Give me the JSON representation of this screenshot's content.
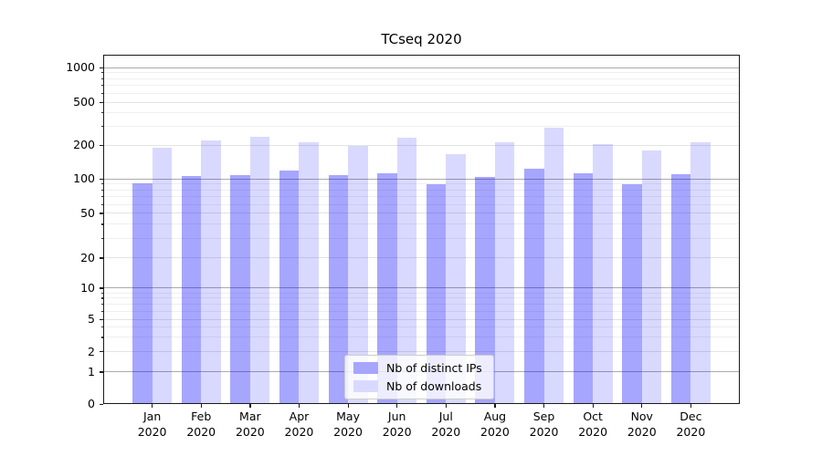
{
  "title": "TCseq 2020",
  "colors": {
    "bar_ips": "rgba(0,0,255,0.35)",
    "bar_downloads": "rgba(0,0,255,0.15)",
    "legend_ips": "#a6a6ff",
    "legend_downloads": "#d9d9ff",
    "grid_major": "#ababab",
    "grid_medium": "#e3e3e3",
    "grid_minor": "#efefef",
    "spine": "#1a1a1a"
  },
  "chart_data": {
    "type": "bar",
    "title": "TCseq 2020",
    "categories": [
      "Jan",
      "Feb",
      "Mar",
      "Apr",
      "May",
      "Jun",
      "Jul",
      "Aug",
      "Sep",
      "Oct",
      "Nov",
      "Dec"
    ],
    "x_year": "2020",
    "series": [
      {
        "name": "Nb of distinct IPs",
        "color": "rgba(0,0,255,0.35)",
        "legend_color": "#a6a6ff",
        "values": [
          92,
          105,
          108,
          118,
          108,
          111,
          90,
          104,
          122,
          112,
          90,
          109
        ]
      },
      {
        "name": "Nb of downloads",
        "color": "rgba(0,0,255,0.15)",
        "legend_color": "#d9d9ff",
        "values": [
          190,
          221,
          241,
          213,
          199,
          236,
          166,
          212,
          289,
          207,
          180,
          212
        ]
      }
    ],
    "y_axis": {
      "scale": "symlog",
      "ylim": [
        0,
        1100
      ],
      "ticks": [
        0,
        1,
        2,
        5,
        10,
        20,
        50,
        100,
        200,
        500,
        1000
      ],
      "anchors": [
        [
          0,
          0.0
        ],
        [
          1,
          0.0914
        ],
        [
          2,
          0.1496
        ],
        [
          5,
          0.2428
        ],
        [
          10,
          0.3316
        ],
        [
          20,
          0.4178
        ],
        [
          50,
          0.5457
        ],
        [
          100,
          0.6449
        ],
        [
          200,
          0.7407
        ],
        [
          500,
          0.8642
        ],
        [
          1000,
          0.9634
        ]
      ],
      "grid_major": [
        1,
        10,
        100,
        1000
      ],
      "grid_medium": [
        2,
        5,
        20,
        50,
        200,
        500
      ],
      "grid_minor": [
        3,
        4,
        6,
        7,
        8,
        9,
        30,
        40,
        60,
        70,
        80,
        90,
        300,
        400,
        600,
        700,
        800,
        900
      ]
    },
    "legend_position": "lower center",
    "grid": true
  }
}
